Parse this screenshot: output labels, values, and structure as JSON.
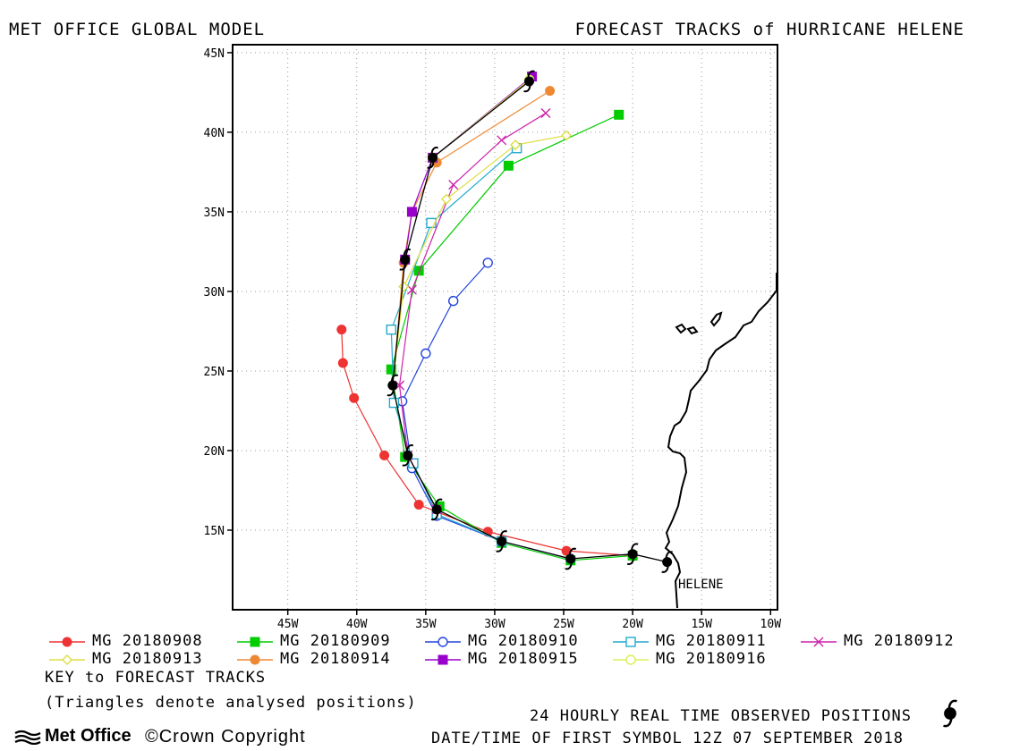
{
  "header": {
    "left_title": "MET OFFICE GLOBAL MODEL",
    "right_title": "FORECAST TRACKS of HURRICANE HELENE"
  },
  "map": {
    "lon_range": [
      -49,
      -9.5
    ],
    "lat_range": [
      10,
      45.5
    ],
    "x_ticks": [
      {
        "lon": -45,
        "label": "45W"
      },
      {
        "lon": -40,
        "label": "40W"
      },
      {
        "lon": -35,
        "label": "35W"
      },
      {
        "lon": -30,
        "label": "30W"
      },
      {
        "lon": -25,
        "label": "25W"
      },
      {
        "lon": -20,
        "label": "20W"
      },
      {
        "lon": -15,
        "label": "15W"
      },
      {
        "lon": -10,
        "label": "10W"
      }
    ],
    "y_ticks": [
      {
        "lat": 15,
        "label": "15N"
      },
      {
        "lat": 20,
        "label": "20N"
      },
      {
        "lat": 25,
        "label": "25N"
      },
      {
        "lat": 30,
        "label": "30N"
      },
      {
        "lat": 35,
        "label": "35N"
      },
      {
        "lat": 40,
        "label": "40N"
      },
      {
        "lat": 45,
        "label": "45N"
      }
    ],
    "grid": "dotted",
    "storm_label": "HELENE"
  },
  "chart_data": {
    "type": "line",
    "x_label": "",
    "y_label": "",
    "observed": {
      "name": "24 HOURLY REAL TIME OBSERVED POSITIONS",
      "points": [
        [
          -17.5,
          13.0
        ],
        [
          -20.0,
          13.5
        ],
        [
          -24.5,
          13.2
        ],
        [
          -29.5,
          14.3
        ],
        [
          -34.2,
          16.3
        ],
        [
          -36.3,
          19.7
        ],
        [
          -37.4,
          24.1
        ],
        [
          -36.5,
          32.0
        ],
        [
          -34.5,
          38.4
        ],
        [
          -27.5,
          43.2
        ]
      ]
    },
    "series": [
      {
        "name": "MG 20180908",
        "color": "#ee3333",
        "marker": "filled-circle",
        "points": [
          [
            -20.0,
            13.4
          ],
          [
            -24.8,
            13.7
          ],
          [
            -30.5,
            14.9
          ],
          [
            -35.5,
            16.6
          ],
          [
            -38.0,
            19.7
          ],
          [
            -40.2,
            23.3
          ],
          [
            -41.0,
            25.5
          ],
          [
            -41.1,
            27.6
          ]
        ]
      },
      {
        "name": "MG 20180909",
        "color": "#00cc00",
        "marker": "filled-square",
        "points": [
          [
            -20.0,
            13.4
          ],
          [
            -24.5,
            13.1
          ],
          [
            -29.5,
            14.2
          ],
          [
            -34.0,
            16.5
          ],
          [
            -36.5,
            19.6
          ],
          [
            -37.5,
            25.1
          ],
          [
            -35.5,
            31.3
          ],
          [
            -29.0,
            37.9
          ],
          [
            -21.0,
            41.1
          ]
        ]
      },
      {
        "name": "MG 20180910",
        "color": "#2244dd",
        "marker": "open-circle",
        "points": [
          [
            -24.5,
            13.2
          ],
          [
            -29.5,
            14.3
          ],
          [
            -34.2,
            15.9
          ],
          [
            -36.0,
            18.9
          ],
          [
            -36.7,
            23.1
          ],
          [
            -35.0,
            26.1
          ],
          [
            -33.0,
            29.4
          ],
          [
            -30.5,
            31.8
          ]
        ]
      },
      {
        "name": "MG 20180911",
        "color": "#22aacc",
        "marker": "open-square",
        "points": [
          [
            -29.5,
            14.3
          ],
          [
            -34.2,
            16.0
          ],
          [
            -35.9,
            19.2
          ],
          [
            -37.3,
            23.0
          ],
          [
            -37.5,
            27.6
          ],
          [
            -34.6,
            34.3
          ],
          [
            -28.4,
            39.0
          ]
        ]
      },
      {
        "name": "MG 20180912",
        "color": "#cc22aa",
        "marker": "cross",
        "points": [
          [
            -34.2,
            16.3
          ],
          [
            -36.3,
            19.7
          ],
          [
            -36.9,
            24.1
          ],
          [
            -36.0,
            30.1
          ],
          [
            -33.0,
            36.7
          ],
          [
            -29.5,
            39.5
          ],
          [
            -26.3,
            41.2
          ]
        ]
      },
      {
        "name": "MG 20180913",
        "color": "#dddd44",
        "marker": "open-diamond",
        "points": [
          [
            -36.3,
            19.7
          ],
          [
            -37.4,
            24.1
          ],
          [
            -36.6,
            30.3
          ],
          [
            -33.5,
            35.8
          ],
          [
            -28.5,
            39.2
          ],
          [
            -24.8,
            39.8
          ]
        ]
      },
      {
        "name": "MG 20180914",
        "color": "#ee8833",
        "marker": "filled-circle",
        "points": [
          [
            -37.4,
            24.1
          ],
          [
            -36.6,
            31.8
          ],
          [
            -36.0,
            35.0
          ],
          [
            -34.2,
            38.1
          ],
          [
            -26.0,
            42.6
          ]
        ]
      },
      {
        "name": "MG 20180915",
        "color": "#9900cc",
        "marker": "filled-square",
        "points": [
          [
            -36.5,
            32.0
          ],
          [
            -36.0,
            35.0
          ],
          [
            -34.5,
            38.4
          ],
          [
            -27.3,
            43.5
          ]
        ]
      },
      {
        "name": "MG 20180916",
        "color": "#ddee55",
        "marker": "open-circle",
        "points": [
          [
            -34.5,
            38.4
          ],
          [
            -27.5,
            43.3
          ]
        ]
      }
    ]
  },
  "legend_extra": {
    "key_title": "KEY to FORECAST TRACKS",
    "key_note": "(Triangles denote analysed positions)"
  },
  "footer": {
    "observed_label": "24 HOURLY REAL TIME OBSERVED POSITIONS",
    "date_label": "DATE/TIME OF FIRST SYMBOL 12Z 07 SEPTEMBER 2018",
    "brand": "Met Office",
    "copyright": "©Crown Copyright"
  }
}
